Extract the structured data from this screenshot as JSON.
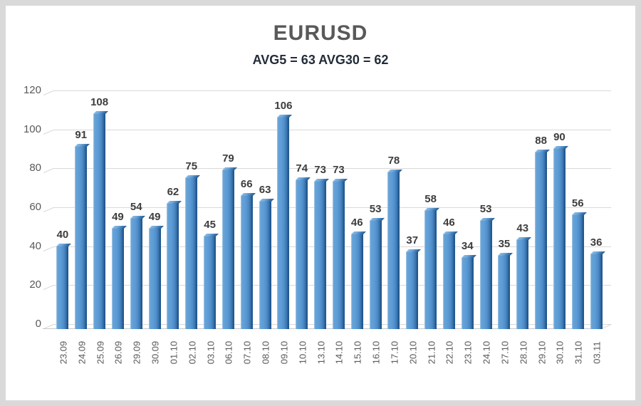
{
  "chart_data": {
    "type": "bar",
    "title": "EURUSD",
    "subtitle": "AVG5 = 63 AVG30 = 62",
    "avg5": 63,
    "avg30": 62,
    "categories": [
      "23.09",
      "24.09",
      "25.09",
      "26.09",
      "29.09",
      "30.09",
      "01.10",
      "02.10",
      "03.10",
      "06.10",
      "07.10",
      "08.10",
      "09.10",
      "10.10",
      "13.10",
      "14.10",
      "15.10",
      "16.10",
      "17.10",
      "20.10",
      "21.10",
      "22.10",
      "23.10",
      "24.10",
      "27.10",
      "28.10",
      "29.10",
      "30.10",
      "31.10",
      "03.11"
    ],
    "values": [
      40,
      91,
      108,
      49,
      54,
      49,
      62,
      75,
      45,
      79,
      66,
      63,
      106,
      74,
      73,
      73,
      46,
      53,
      78,
      37,
      58,
      46,
      34,
      53,
      35,
      43,
      88,
      90,
      56,
      36
    ],
    "xlabel": "",
    "ylabel": "",
    "ylim": [
      0,
      120
    ],
    "yticks": [
      0,
      20,
      40,
      60,
      80,
      100,
      120
    ],
    "grid": true,
    "legend": false,
    "colors": {
      "bar_main": "#5b9bd5",
      "bar_light": "#a6c9e8",
      "bar_dark": "#1f568d",
      "gridline": "#d9d9d9",
      "floor_line": "#c8c8c8",
      "title": "#595959",
      "subtitle": "#232c39",
      "value_label": "#3d3d3d",
      "axis_label": "#595959",
      "frame": "#d9d9d9",
      "background": "#ffffff"
    }
  }
}
